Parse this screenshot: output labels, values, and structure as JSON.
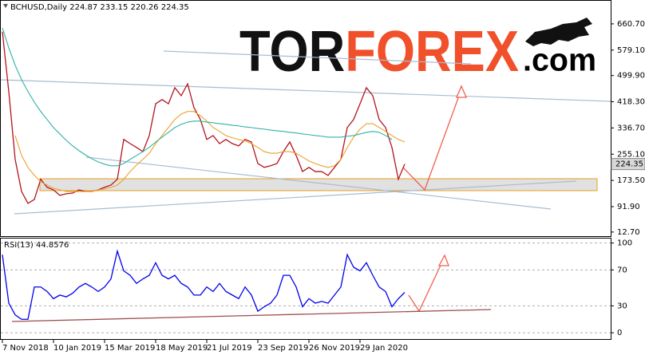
{
  "chart_data": [
    {
      "type": "line",
      "title": "BCHUSD,Daily  224.87 233.15 220.26 224.35",
      "categories": [
        "7 Nov 2018",
        null,
        null,
        null,
        null,
        null,
        null,
        null,
        "10 Jan 2019",
        null,
        null,
        null,
        null,
        null,
        null,
        null,
        "15 Mar 2019",
        null,
        null,
        null,
        null,
        null,
        null,
        null,
        "18 May 2019",
        null,
        null,
        null,
        null,
        null,
        null,
        null,
        "21 Jul 2019",
        null,
        null,
        null,
        null,
        null,
        null,
        null,
        "23 Sep 2019",
        null,
        null,
        null,
        null,
        null,
        null,
        null,
        "26 Nov 2019",
        null,
        null,
        null,
        null,
        null,
        null,
        null,
        "29 Jan 2020",
        null,
        null,
        null,
        null,
        null,
        null,
        null
      ],
      "series": [
        {
          "color": "#b3141e",
          "values": [
            636,
            450,
            239,
            139,
            102,
            114,
            177,
            152,
            144,
            127,
            132,
            134,
            144,
            139,
            139,
            144,
            152,
            159,
            177,
            301,
            288,
            276,
            263,
            313,
            412,
            425,
            412,
            462,
            437,
            474,
            400,
            363,
            301,
            313,
            288,
            301,
            288,
            281,
            301,
            293,
            226,
            214,
            219,
            226,
            263,
            293,
            251,
            201,
            214,
            201,
            201,
            189,
            214,
            239,
            338,
            363,
            412,
            462,
            437,
            363,
            338,
            276,
            177,
            224.35
          ]
        },
        {
          "color": "#eba22e",
          "values": [
            null,
            null,
            313,
            251,
            214,
            189,
            169,
            159,
            149,
            144,
            139,
            139,
            139,
            139,
            139,
            144,
            147,
            152,
            159,
            177,
            201,
            221,
            239,
            258,
            288,
            313,
            338,
            363,
            380,
            388,
            388,
            375,
            358,
            338,
            326,
            313,
            306,
            301,
            296,
            288,
            276,
            263,
            258,
            258,
            263,
            263,
            258,
            246,
            234,
            226,
            219,
            214,
            219,
            239,
            276,
            308,
            333,
            350,
            350,
            338,
            326,
            313,
            301,
            293
          ]
        },
        {
          "color": "#2fb3a5",
          "values": [
            648,
            586,
            532,
            487,
            450,
            417,
            388,
            363,
            338,
            318,
            298,
            281,
            266,
            253,
            241,
            231,
            224,
            219,
            219,
            226,
            239,
            251,
            263,
            276,
            293,
            308,
            323,
            338,
            348,
            355,
            358,
            358,
            355,
            353,
            350,
            348,
            345,
            343,
            340,
            338,
            335,
            333,
            330,
            328,
            326,
            323,
            321,
            318,
            316,
            313,
            311,
            308,
            308,
            308,
            311,
            313,
            318,
            323,
            326,
            323,
            313,
            301,
            null,
            null
          ]
        }
      ],
      "ylim": [
        0,
        730
      ],
      "yticks": [
        {
          "value": 660.7,
          "label": "660.70"
        },
        {
          "value": 579.1,
          "label": "579.10"
        },
        {
          "value": 499.9,
          "label": "499.90"
        },
        {
          "value": 418.3,
          "label": "418.30"
        },
        {
          "value": 336.7,
          "label": "336.70"
        },
        {
          "value": 255.1,
          "label": "255.10"
        },
        {
          "value": 173.5,
          "label": "173.50"
        },
        {
          "value": 91.9,
          "label": "91.90"
        },
        {
          "value": 12.7,
          "label": "12.70"
        }
      ],
      "grid": false,
      "watermark": {
        "tor": "TOR",
        "forex": "FOREX",
        "com": ".com"
      }
    },
    {
      "type": "line",
      "title": "RSI(13) 44.8576",
      "series": [
        {
          "color": "#0000ee",
          "values": [
            87,
            33,
            20,
            15,
            15,
            51,
            51,
            46,
            38,
            42,
            40,
            44,
            51,
            55,
            51,
            46,
            51,
            60,
            91,
            69,
            64,
            55,
            60,
            64,
            78,
            64,
            60,
            64,
            55,
            51,
            42,
            42,
            51,
            46,
            55,
            46,
            42,
            38,
            51,
            42,
            24,
            29,
            33,
            42,
            64,
            64,
            51,
            29,
            38,
            33,
            35,
            33,
            42,
            51,
            87,
            73,
            69,
            78,
            64,
            51,
            46,
            29,
            38,
            45
          ]
        }
      ],
      "ylim": [
        -7,
        105
      ],
      "yticks": [
        100,
        70,
        30,
        0
      ],
      "grid": true
    }
  ]
}
